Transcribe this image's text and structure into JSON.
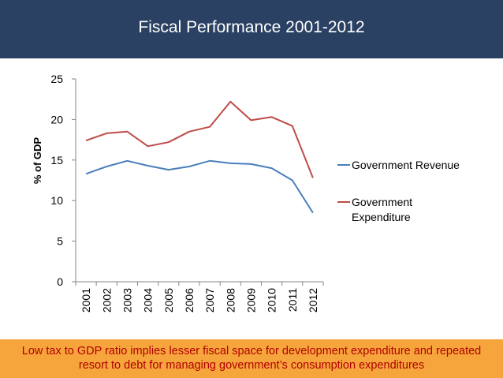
{
  "header": {
    "title": "Fiscal Performance 2001-2012"
  },
  "footer": {
    "line1": "Low tax to GDP ratio implies lesser fiscal space for development expenditure and repeated",
    "line2": "resort to debt for managing government’s consumption expenditures"
  },
  "colors": {
    "header_bg": "#2b4163",
    "footer_bg": "#f6a53d",
    "footer_text": "#b10000"
  },
  "chart_data": {
    "type": "line",
    "title": "",
    "xlabel": "",
    "ylabel": "% of GDP",
    "ylim": [
      0,
      25
    ],
    "yticks": [
      0,
      5,
      10,
      15,
      20,
      25
    ],
    "categories": [
      "2001",
      "2002",
      "2003",
      "2004",
      "2005",
      "2006",
      "2007",
      "2008",
      "2009",
      "2010",
      "2011",
      "2012"
    ],
    "series": [
      {
        "name": "Government Revenue",
        "legend_lines": [
          "Government Revenue"
        ],
        "color": "#4a7ebb",
        "values": [
          13.3,
          14.2,
          14.9,
          14.3,
          13.8,
          14.2,
          14.9,
          14.6,
          14.5,
          14.0,
          12.5,
          8.5
        ]
      },
      {
        "name": "Government Expenditure",
        "legend_lines": [
          "Government",
          "Expenditure"
        ],
        "color": "#be4b48",
        "values": [
          17.4,
          18.3,
          18.5,
          16.7,
          17.2,
          18.5,
          19.1,
          22.2,
          19.9,
          20.3,
          19.2,
          12.8
        ]
      }
    ],
    "legend": "right"
  }
}
